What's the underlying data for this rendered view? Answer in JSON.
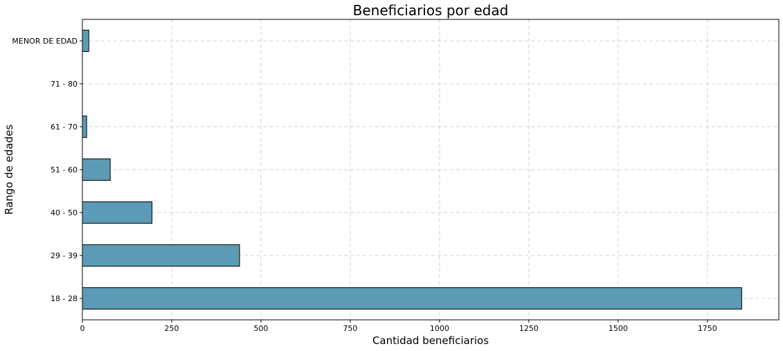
{
  "chart_data": {
    "type": "bar",
    "orientation": "horizontal",
    "title": "Beneficiarios por edad",
    "xlabel": "Cantidad beneficiarios",
    "ylabel": "Rango de edades",
    "categories": [
      "18 - 28",
      "29 - 39",
      "40 - 50",
      "51 - 60",
      "61 - 70",
      "71 - 80",
      "MENOR DE EDAD"
    ],
    "values": [
      1846,
      440,
      195,
      78,
      12,
      0,
      18
    ],
    "xlim": [
      0,
      1950
    ],
    "xticks": [
      0,
      250,
      500,
      750,
      1000,
      1250,
      1500,
      1750
    ],
    "grid": true,
    "bar_color": "#5b9bb5"
  }
}
